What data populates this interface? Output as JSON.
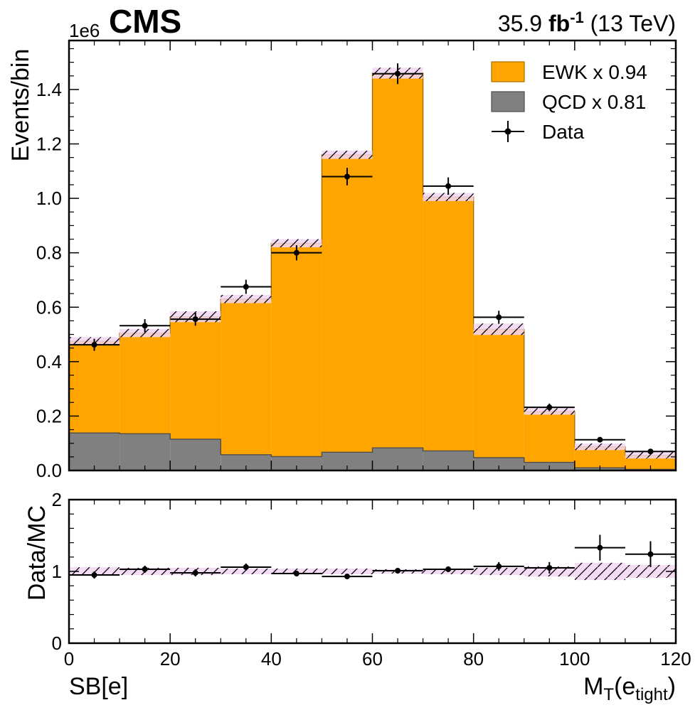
{
  "header": {
    "experiment": "CMS",
    "lumi_value": "35.9",
    "lumi_unit": "fb",
    "lumi_exp": "-1",
    "energy": "(13 TeV)",
    "exponent_label": "1e6"
  },
  "colors": {
    "ewk": "#ffa500",
    "ewk_edge": "#a86d00",
    "qcd": "#808080",
    "qcd_edge": "#4d4d4d",
    "unc_band": "#f2d6f2",
    "hatch": "#000000",
    "data": "#000000"
  },
  "chart_data": [
    {
      "type": "bar",
      "subtype": "stacked-histogram",
      "ylabel": "Events/bin",
      "y_scale_note": "1e6",
      "xlim": [
        0,
        120
      ],
      "ylim": [
        0,
        1.58
      ],
      "yticks": [
        "0.0",
        "0.2",
        "0.4",
        "0.6",
        "0.8",
        "1.0",
        "1.2",
        "1.4"
      ],
      "ytick_values": [
        0,
        0.2,
        0.4,
        0.6,
        0.8,
        1.0,
        1.2,
        1.4
      ],
      "bin_edges": [
        0,
        10,
        20,
        30,
        40,
        50,
        60,
        70,
        80,
        90,
        100,
        110,
        120
      ],
      "legend_position": "top-right",
      "series": [
        {
          "name": "QCD x 0.81",
          "kind": "stack",
          "values": [
            0.138,
            0.135,
            0.115,
            0.058,
            0.051,
            0.067,
            0.083,
            0.072,
            0.047,
            0.03,
            0.01,
            0.004
          ]
        },
        {
          "name": "EWK x 0.94",
          "kind": "stack",
          "values": [
            0.337,
            0.37,
            0.45,
            0.572,
            0.784,
            1.093,
            1.377,
            0.933,
            0.472,
            0.187,
            0.077,
            0.052
          ]
        }
      ],
      "mc_total_with_unc": [
        0.49,
        0.52,
        0.585,
        0.645,
        0.85,
        1.175,
        1.48,
        1.02,
        0.54,
        0.225,
        0.09,
        0.06
      ],
      "data": {
        "name": "Data",
        "x": [
          5,
          15,
          25,
          35,
          45,
          55,
          65,
          75,
          85,
          95,
          105,
          115
        ],
        "y": [
          0.462,
          0.532,
          0.556,
          0.675,
          0.8,
          1.08,
          1.458,
          1.045,
          0.563,
          0.232,
          0.113,
          0.07
        ],
        "yerr": [
          0.022,
          0.024,
          0.024,
          0.026,
          0.028,
          0.032,
          0.038,
          0.032,
          0.024,
          0.014,
          0.008,
          0.006
        ]
      }
    },
    {
      "type": "scatter",
      "subtype": "ratio",
      "ylabel": "Data/MC",
      "xlabel": "M_T(e_tight)",
      "xlabel_main": "M",
      "xlabel_sub1": "T",
      "xlabel_mid": "(e",
      "xlabel_sub2": "tight",
      "xlabel_end": ")",
      "region_label": "SB[e]",
      "xlim": [
        0,
        120
      ],
      "ylim": [
        0,
        2
      ],
      "xticks": [
        "0",
        "20",
        "40",
        "60",
        "80",
        "100",
        "120"
      ],
      "xtick_values": [
        0,
        20,
        40,
        60,
        80,
        100,
        120
      ],
      "yticks": [
        "0",
        "1",
        "2"
      ],
      "ytick_values": [
        0,
        1,
        2
      ],
      "x": [
        5,
        15,
        25,
        35,
        45,
        55,
        65,
        75,
        85,
        95,
        105,
        115
      ],
      "y": [
        0.95,
        1.03,
        0.98,
        1.06,
        0.97,
        0.93,
        1.01,
        1.03,
        1.07,
        1.05,
        1.33,
        1.24
      ],
      "yerr": [
        0.05,
        0.05,
        0.05,
        0.05,
        0.04,
        0.03,
        0.02,
        0.04,
        0.06,
        0.08,
        0.18,
        0.18
      ],
      "unc_band_halfwidth": [
        0.06,
        0.05,
        0.05,
        0.04,
        0.04,
        0.04,
        0.03,
        0.04,
        0.05,
        0.07,
        0.12,
        0.09
      ]
    }
  ]
}
